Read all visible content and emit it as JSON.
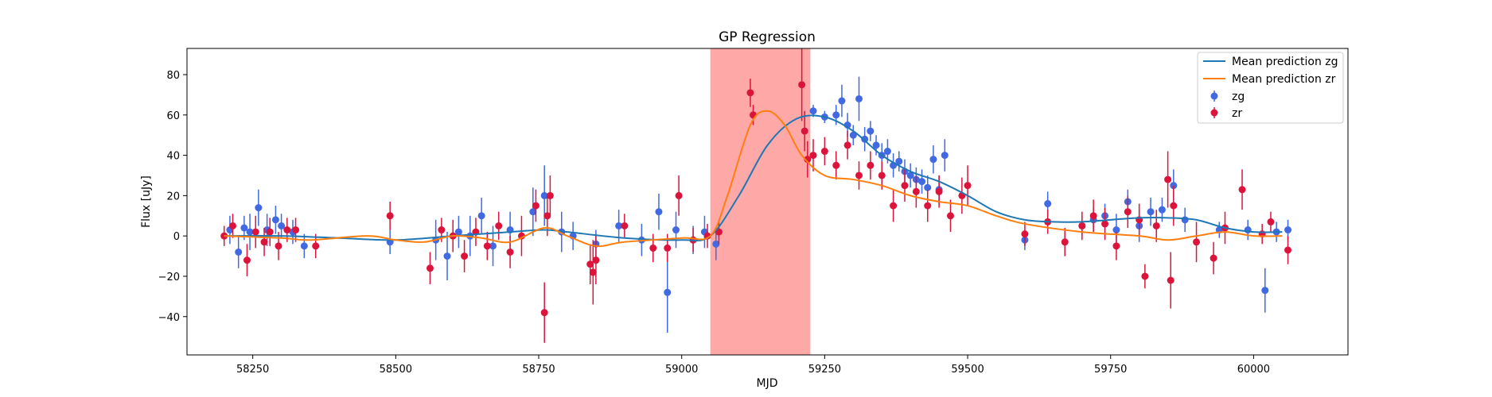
{
  "chart_data": {
    "type": "scatter",
    "title": "GP Regression",
    "xlabel": "MJD",
    "ylabel": "Flux [uJy]",
    "xlim": [
      58135,
      60165
    ],
    "ylim": [
      -59,
      93
    ],
    "xticks": [
      58250,
      58500,
      58750,
      59000,
      59250,
      59500,
      59750,
      60000
    ],
    "yticks": [
      -40,
      -20,
      0,
      20,
      40,
      60,
      80
    ],
    "grid": false,
    "legend_position": "top-right",
    "shaded_region": {
      "x_start": 59050,
      "x_end": 59225,
      "color": "#ffa8a8"
    },
    "legend": [
      "Mean prediction zg",
      "Mean prediction zr",
      "zg",
      "zr"
    ],
    "series": [
      {
        "name": "Mean prediction zg",
        "type": "line",
        "color": "#1f77b4",
        "x": [
          58200,
          58300,
          58400,
          58500,
          58600,
          58700,
          58760,
          58800,
          58900,
          59000,
          59050,
          59100,
          59150,
          59200,
          59250,
          59300,
          59350,
          59400,
          59450,
          59500,
          59550,
          59600,
          59650,
          59700,
          59750,
          59800,
          59850,
          59900,
          59950,
          60000,
          60050
        ],
        "y": [
          0,
          0,
          -1,
          -2,
          0,
          2,
          3,
          2,
          -1,
          -2,
          0,
          20,
          45,
          58,
          59,
          52,
          40,
          32,
          27,
          20,
          12,
          8,
          7,
          7,
          8,
          9,
          9,
          8,
          4,
          2,
          2
        ]
      },
      {
        "name": "Mean prediction zr",
        "type": "line",
        "color": "#ff7f0e",
        "x": [
          58200,
          58300,
          58350,
          58450,
          58500,
          58550,
          58600,
          58650,
          58700,
          58760,
          58800,
          58850,
          58900,
          59000,
          59050,
          59080,
          59120,
          59150,
          59180,
          59210,
          59250,
          59300,
          59350,
          59400,
          59450,
          59500,
          59550,
          59600,
          59700,
          59800,
          59850,
          59900,
          59950,
          60000,
          60050
        ],
        "y": [
          0,
          -1,
          -2,
          0,
          -2,
          -3,
          0,
          -1,
          -3,
          4,
          0,
          -5,
          -3,
          -1,
          0,
          20,
          55,
          62,
          55,
          40,
          30,
          28,
          25,
          20,
          17,
          15,
          10,
          6,
          2,
          0,
          -2,
          0,
          2,
          0,
          0
        ]
      },
      {
        "name": "zg",
        "type": "errorbar",
        "color": "#4169e1",
        "x": [
          58210,
          58225,
          58235,
          58245,
          58260,
          58275,
          58290,
          58300,
          58320,
          58340,
          58490,
          58570,
          58590,
          58610,
          58630,
          58650,
          58670,
          58700,
          58740,
          58760,
          58790,
          58810,
          58850,
          58890,
          58930,
          58960,
          58975,
          58990,
          59020,
          59040,
          59060,
          59230,
          59250,
          59270,
          59280,
          59290,
          59300,
          59310,
          59320,
          59330,
          59340,
          59350,
          59360,
          59370,
          59380,
          59390,
          59400,
          59410,
          59420,
          59430,
          59440,
          59450,
          59460,
          59600,
          59640,
          59700,
          59720,
          59740,
          59760,
          59780,
          59800,
          59820,
          59840,
          59860,
          59880,
          59940,
          59990,
          60020,
          60040,
          60060
        ],
        "y": [
          3,
          -8,
          4,
          2,
          14,
          3,
          8,
          5,
          2,
          -5,
          -3,
          -2,
          -10,
          2,
          0,
          10,
          -5,
          3,
          12,
          20,
          2,
          0,
          -4,
          5,
          -2,
          12,
          -28,
          3,
          -2,
          2,
          -4,
          62,
          59,
          60,
          67,
          55,
          50,
          68,
          48,
          52,
          45,
          40,
          42,
          35,
          37,
          32,
          30,
          28,
          27,
          24,
          38,
          23,
          40,
          -2,
          16,
          5,
          8,
          10,
          3,
          17,
          5,
          12,
          13,
          25,
          8,
          3,
          3,
          -27,
          2,
          3
        ],
        "yerr": [
          7,
          8,
          6,
          9,
          9,
          8,
          7,
          6,
          6,
          6,
          6,
          10,
          12,
          8,
          10,
          9,
          10,
          9,
          12,
          15,
          10,
          7,
          7,
          8,
          8,
          9,
          20,
          9,
          7,
          8,
          8,
          3,
          3,
          5,
          8,
          6,
          5,
          11,
          6,
          5,
          5,
          6,
          6,
          6,
          5,
          6,
          6,
          6,
          6,
          6,
          7,
          7,
          8,
          5,
          6,
          5,
          6,
          6,
          8,
          6,
          8,
          7,
          6,
          8,
          6,
          4,
          5,
          11,
          5,
          5
        ]
      },
      {
        "name": "zr",
        "type": "errorbar",
        "color": "#dc143c",
        "x": [
          58200,
          58215,
          58240,
          58255,
          58270,
          58280,
          58295,
          58310,
          58325,
          58360,
          58490,
          58560,
          58580,
          58600,
          58620,
          58640,
          58660,
          58680,
          58700,
          58720,
          58745,
          58760,
          58765,
          58770,
          58840,
          58845,
          58850,
          58900,
          58950,
          58975,
          58995,
          59020,
          59045,
          59065,
          59120,
          59125,
          59210,
          59215,
          59220,
          59230,
          59250,
          59270,
          59290,
          59310,
          59330,
          59350,
          59370,
          59390,
          59410,
          59430,
          59450,
          59470,
          59490,
          59500,
          59600,
          59640,
          59670,
          59700,
          59720,
          59740,
          59760,
          59780,
          59800,
          59810,
          59830,
          59850,
          59855,
          59860,
          59900,
          59930,
          59950,
          59980,
          60015,
          60030,
          60060
        ],
        "y": [
          0,
          5,
          -12,
          2,
          -3,
          2,
          -5,
          3,
          3,
          -5,
          10,
          -16,
          3,
          0,
          -10,
          2,
          -5,
          5,
          -8,
          0,
          15,
          -38,
          10,
          20,
          -14,
          -18,
          -12,
          5,
          -6,
          -6,
          20,
          -2,
          0,
          2,
          71,
          60,
          75,
          52,
          38,
          40,
          42,
          35,
          45,
          30,
          35,
          30,
          15,
          25,
          22,
          15,
          22,
          10,
          20,
          25,
          1,
          7,
          -3,
          5,
          10,
          6,
          -5,
          12,
          8,
          -20,
          5,
          28,
          -22,
          15,
          -3,
          -11,
          4,
          23,
          1,
          7,
          -7
        ],
        "yerr": [
          5,
          6,
          8,
          8,
          7,
          7,
          7,
          6,
          6,
          6,
          7,
          8,
          6,
          8,
          8,
          7,
          7,
          7,
          8,
          10,
          8,
          15,
          10,
          10,
          10,
          16,
          12,
          6,
          7,
          7,
          10,
          6,
          6,
          6,
          7,
          5,
          18,
          10,
          9,
          8,
          7,
          7,
          7,
          7,
          7,
          7,
          8,
          8,
          8,
          8,
          8,
          8,
          9,
          10,
          6,
          6,
          7,
          7,
          8,
          8,
          7,
          8,
          8,
          6,
          8,
          14,
          14,
          10,
          10,
          8,
          8,
          10,
          5,
          5,
          7
        ]
      }
    ]
  }
}
